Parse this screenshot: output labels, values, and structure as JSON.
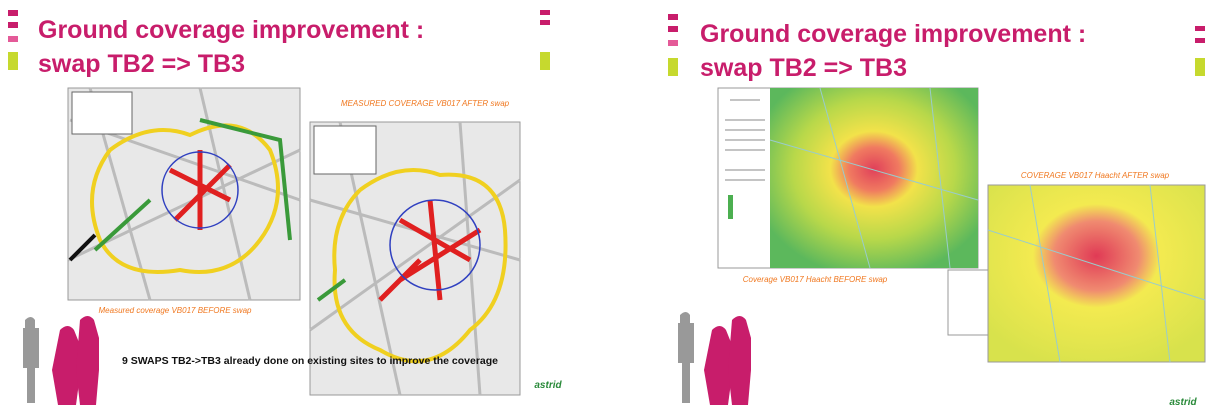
{
  "slides": [
    {
      "title_line1": "Ground coverage improvement :",
      "title_line2": "swap TB2 => TB3",
      "caption_after": "MEASURED COVERAGE VB017 AFTER swap",
      "caption_before": "Measured coverage VB017 BEFORE swap",
      "note": "9 SWAPS TB2->TB3 already done on existing sites to improve the coverage",
      "logo": "astrid"
    },
    {
      "title_line1": "Ground coverage improvement :",
      "title_line2": "swap TB2 => TB3",
      "caption_after": "COVERAGE VB017 Haacht AFTER swap",
      "caption_before": "Coverage VB017 Haacht BEFORE swap",
      "logo": "astrid"
    }
  ]
}
